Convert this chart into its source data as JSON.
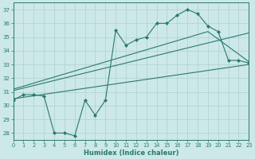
{
  "title": "",
  "xlabel": "Humidex (Indice chaleur)",
  "xlim": [
    0,
    23
  ],
  "ylim": [
    27.5,
    37.5
  ],
  "xticks": [
    0,
    1,
    2,
    3,
    4,
    5,
    6,
    7,
    8,
    9,
    10,
    11,
    12,
    13,
    14,
    15,
    16,
    17,
    18,
    19,
    20,
    21,
    22,
    23
  ],
  "yticks": [
    28,
    29,
    30,
    31,
    32,
    33,
    34,
    35,
    36,
    37
  ],
  "bg_color": "#cce8e8",
  "line_color": "#2a7a6a",
  "grid_color": "#b0d0d0",
  "main_x": [
    0,
    1,
    2,
    3,
    4,
    5,
    6,
    7,
    8,
    9,
    10,
    11,
    12,
    13,
    14,
    15,
    16,
    17,
    18,
    19,
    20,
    21,
    22,
    23
  ],
  "main_y": [
    30.4,
    30.8,
    30.8,
    30.7,
    28.0,
    28.0,
    27.8,
    30.4,
    29.3,
    30.4,
    35.5,
    34.4,
    34.8,
    35.0,
    36.0,
    36.0,
    36.6,
    37.0,
    36.7,
    35.8,
    35.4,
    33.3,
    33.3,
    33.1
  ],
  "trend1_x": [
    0,
    23
  ],
  "trend1_y": [
    30.5,
    33.0
  ],
  "trend2_x": [
    0,
    23
  ],
  "trend2_y": [
    31.1,
    35.3
  ],
  "trend3_x": [
    0,
    19,
    23
  ],
  "trend3_y": [
    31.2,
    35.4,
    33.2
  ]
}
